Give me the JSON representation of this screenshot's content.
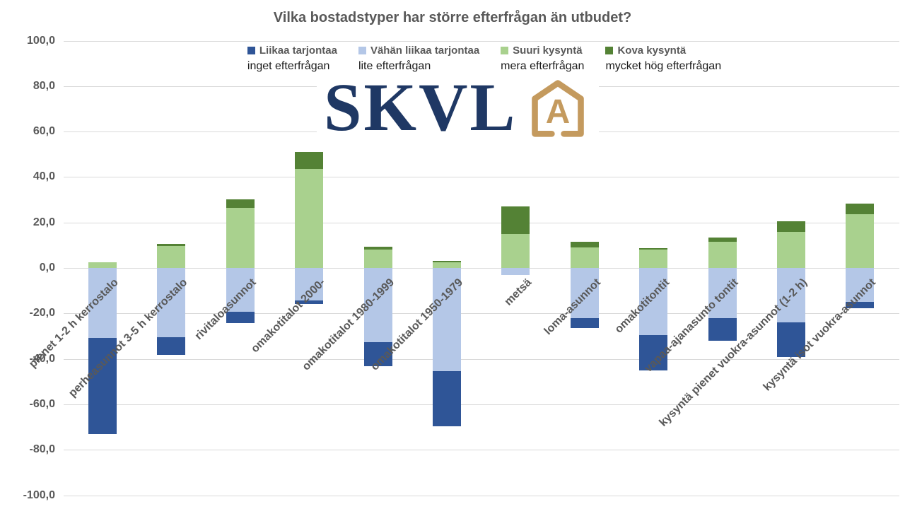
{
  "title": "Vilka bostadstyper har större efterfrågan än utbudet?",
  "colors": {
    "text_gray": "#595959",
    "gridline": "#d9d9d9",
    "liikaa_tarjontaa": "#2f5597",
    "vahan_liikaa_tarjontaa": "#b4c7e7",
    "suuri_kysynta": "#a9d18e",
    "kova_kysynta": "#548235",
    "logo_navy": "#1f3864",
    "logo_gold": "#c49a5e"
  },
  "logo": {
    "text": "SKVL",
    "icon": "house-outline-with-letter",
    "icon_letter": "A"
  },
  "legend": {
    "items": [
      {
        "label": "Liikaa tarjontaa",
        "sublabel": "inget efterfrågan",
        "color": "#2f5597"
      },
      {
        "label": "Vähän liikaa tarjontaa",
        "sublabel": "lite efterfrågan",
        "color": "#b4c7e7"
      },
      {
        "label": "Suuri kysyntä",
        "sublabel": "mera efterfrågan",
        "color": "#a9d18e"
      },
      {
        "label": "Kova kysyntä",
        "sublabel": "mycket hög efterfrågan",
        "color": "#548235"
      }
    ]
  },
  "y_axis": {
    "tick_labels": [
      "100,0",
      "80,0",
      "60,0",
      "40,0",
      "20,0",
      "0,0",
      "-20,0",
      "-40,0",
      "-60,0",
      "-80,0",
      "-100,0"
    ]
  },
  "chart_data": {
    "type": "bar",
    "stacked": true,
    "title": "Vilka bostadstyper har större efterfrågan än utbudet?",
    "xlabel": "",
    "ylabel": "",
    "ylim": [
      -100,
      100
    ],
    "ytick_step": 20,
    "grid": true,
    "legend_position": "top",
    "categories": [
      "pienet 1-2 h kerrostalo",
      "perheasunnot 3-5 h kerrostalo",
      "rivitaloasunnot",
      "omakotitalot 2000-",
      "omakotitalot 1980-1999",
      "omakotitalot 1950-1979",
      "metsä",
      "loma-asunnot",
      "omakotitontit",
      "vapaa-ajanasunto tontit",
      "kysyntä pienet vuokra-asunnot (1-2 h)",
      "kysyntä isot vuokra-asunnot"
    ],
    "series": [
      {
        "name": "Vähän liikaa tarjontaa",
        "color": "#b4c7e7",
        "values": [
          -30.8,
          -30.6,
          -19.2,
          -14.4,
          -32.7,
          -45.5,
          -3.0,
          -22.1,
          -29.4,
          -22.2,
          -23.9,
          -15.0
        ]
      },
      {
        "name": "Liikaa tarjontaa",
        "color": "#2f5597",
        "values": [
          -42.3,
          -7.6,
          -5.0,
          -1.6,
          -10.5,
          -24.2,
          0,
          -4.2,
          -15.7,
          -9.8,
          -15.2,
          -2.7
        ]
      },
      {
        "name": "Suuri kysyntä",
        "color": "#a9d18e",
        "values": [
          2.6,
          9.6,
          26.3,
          43.4,
          8.2,
          2.5,
          15.0,
          9.1,
          8.2,
          11.6,
          15.9,
          23.5
        ]
      },
      {
        "name": "Kova kysyntä",
        "color": "#548235",
        "values": [
          0,
          1.1,
          3.9,
          7.5,
          1.1,
          0.6,
          12.2,
          2.4,
          0.6,
          1.8,
          4.5,
          4.7
        ]
      }
    ]
  }
}
